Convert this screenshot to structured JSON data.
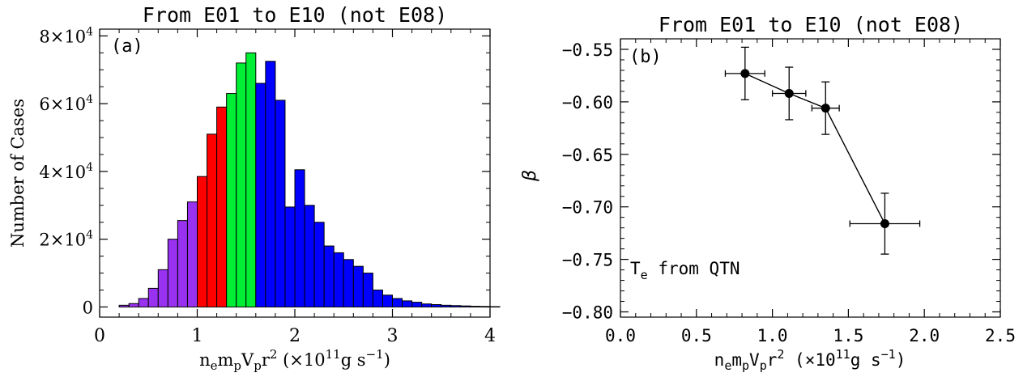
{
  "chart_data": [
    {
      "type": "bar",
      "panel_label": "(a)",
      "title": "From E01 to E10 (not E08)",
      "ylabel": "Number of Cases",
      "xlabel": {
        "main": "n",
        "s1": "e",
        "m2": "m",
        "s2": "p",
        "m3": "V",
        "s3": "p",
        "m4": "r",
        "sup": "2",
        "rest": " (×10",
        "exp": "11",
        "unit": "g s",
        "unitexp": "−1",
        "close": ")"
      },
      "xlim": [
        0,
        4
      ],
      "ylim": [
        -3000,
        82000
      ],
      "xticks": [
        "0",
        "1",
        "2",
        "3",
        "4"
      ],
      "yticks": [
        {
          "base": "0",
          "exp": ""
        },
        {
          "base": "2×10",
          "exp": "4"
        },
        {
          "base": "4×10",
          "exp": "4"
        },
        {
          "base": "6×10",
          "exp": "4"
        },
        {
          "base": "8×10",
          "exp": "4"
        }
      ],
      "bin_width": 0.1,
      "bin_start": 0.2,
      "values": [
        500,
        1000,
        2500,
        5500,
        11000,
        20000,
        25500,
        31000,
        38500,
        51000,
        59000,
        63000,
        72000,
        75000,
        66000,
        72500,
        61000,
        29500,
        40500,
        30000,
        25000,
        18000,
        16000,
        14000,
        12000,
        10000,
        5000,
        3500,
        2500,
        1800,
        1400,
        900,
        700,
        500,
        400,
        300,
        200,
        150,
        100
      ],
      "groups": [
        {
          "from_bin": 0,
          "to_bin": 8,
          "color": "#9932f0"
        },
        {
          "from_bin": 8,
          "to_bin": 11,
          "color": "#ff0000"
        },
        {
          "from_bin": 11,
          "to_bin": 14,
          "color": "#00ee33"
        },
        {
          "from_bin": 14,
          "to_bin": 39,
          "color": "#0000ff"
        }
      ]
    },
    {
      "type": "scatter",
      "panel_label": "(b)",
      "title": "From E01 to E10 (not E08)",
      "ylabel": "β",
      "xlabel": {
        "main": "n",
        "s1": "e",
        "m2": "m",
        "s2": "p",
        "m3": "V",
        "s3": "p",
        "m4": "r",
        "sup": "2",
        "rest": " (×10",
        "exp": "11",
        "unit": "g s",
        "unitexp": "−1",
        "close": ")"
      },
      "annotation": {
        "base": "T",
        "sub": "e",
        "rest": " from QTN"
      },
      "xlim": [
        0,
        2.5
      ],
      "ylim": [
        -0.805,
        -0.54
      ],
      "xticks": [
        "0.0",
        "0.5",
        "1.0",
        "1.5",
        "2.0",
        "2.5"
      ],
      "yticks": [
        "−0.55",
        "−0.60",
        "−0.65",
        "−0.70",
        "−0.75",
        "−0.80"
      ],
      "points": [
        {
          "x": 0.82,
          "y": -0.573,
          "xerr_low": 0.69,
          "xerr_high": 0.95,
          "yerr": 0.025
        },
        {
          "x": 1.11,
          "y": -0.592,
          "xerr_low": 1.0,
          "xerr_high": 1.22,
          "yerr": 0.025
        },
        {
          "x": 1.35,
          "y": -0.606,
          "xerr_low": 1.26,
          "xerr_high": 1.44,
          "yerr": 0.025
        },
        {
          "x": 1.74,
          "y": -0.716,
          "xerr_low": 1.51,
          "xerr_high": 1.97,
          "yerr": 0.029
        }
      ]
    }
  ]
}
